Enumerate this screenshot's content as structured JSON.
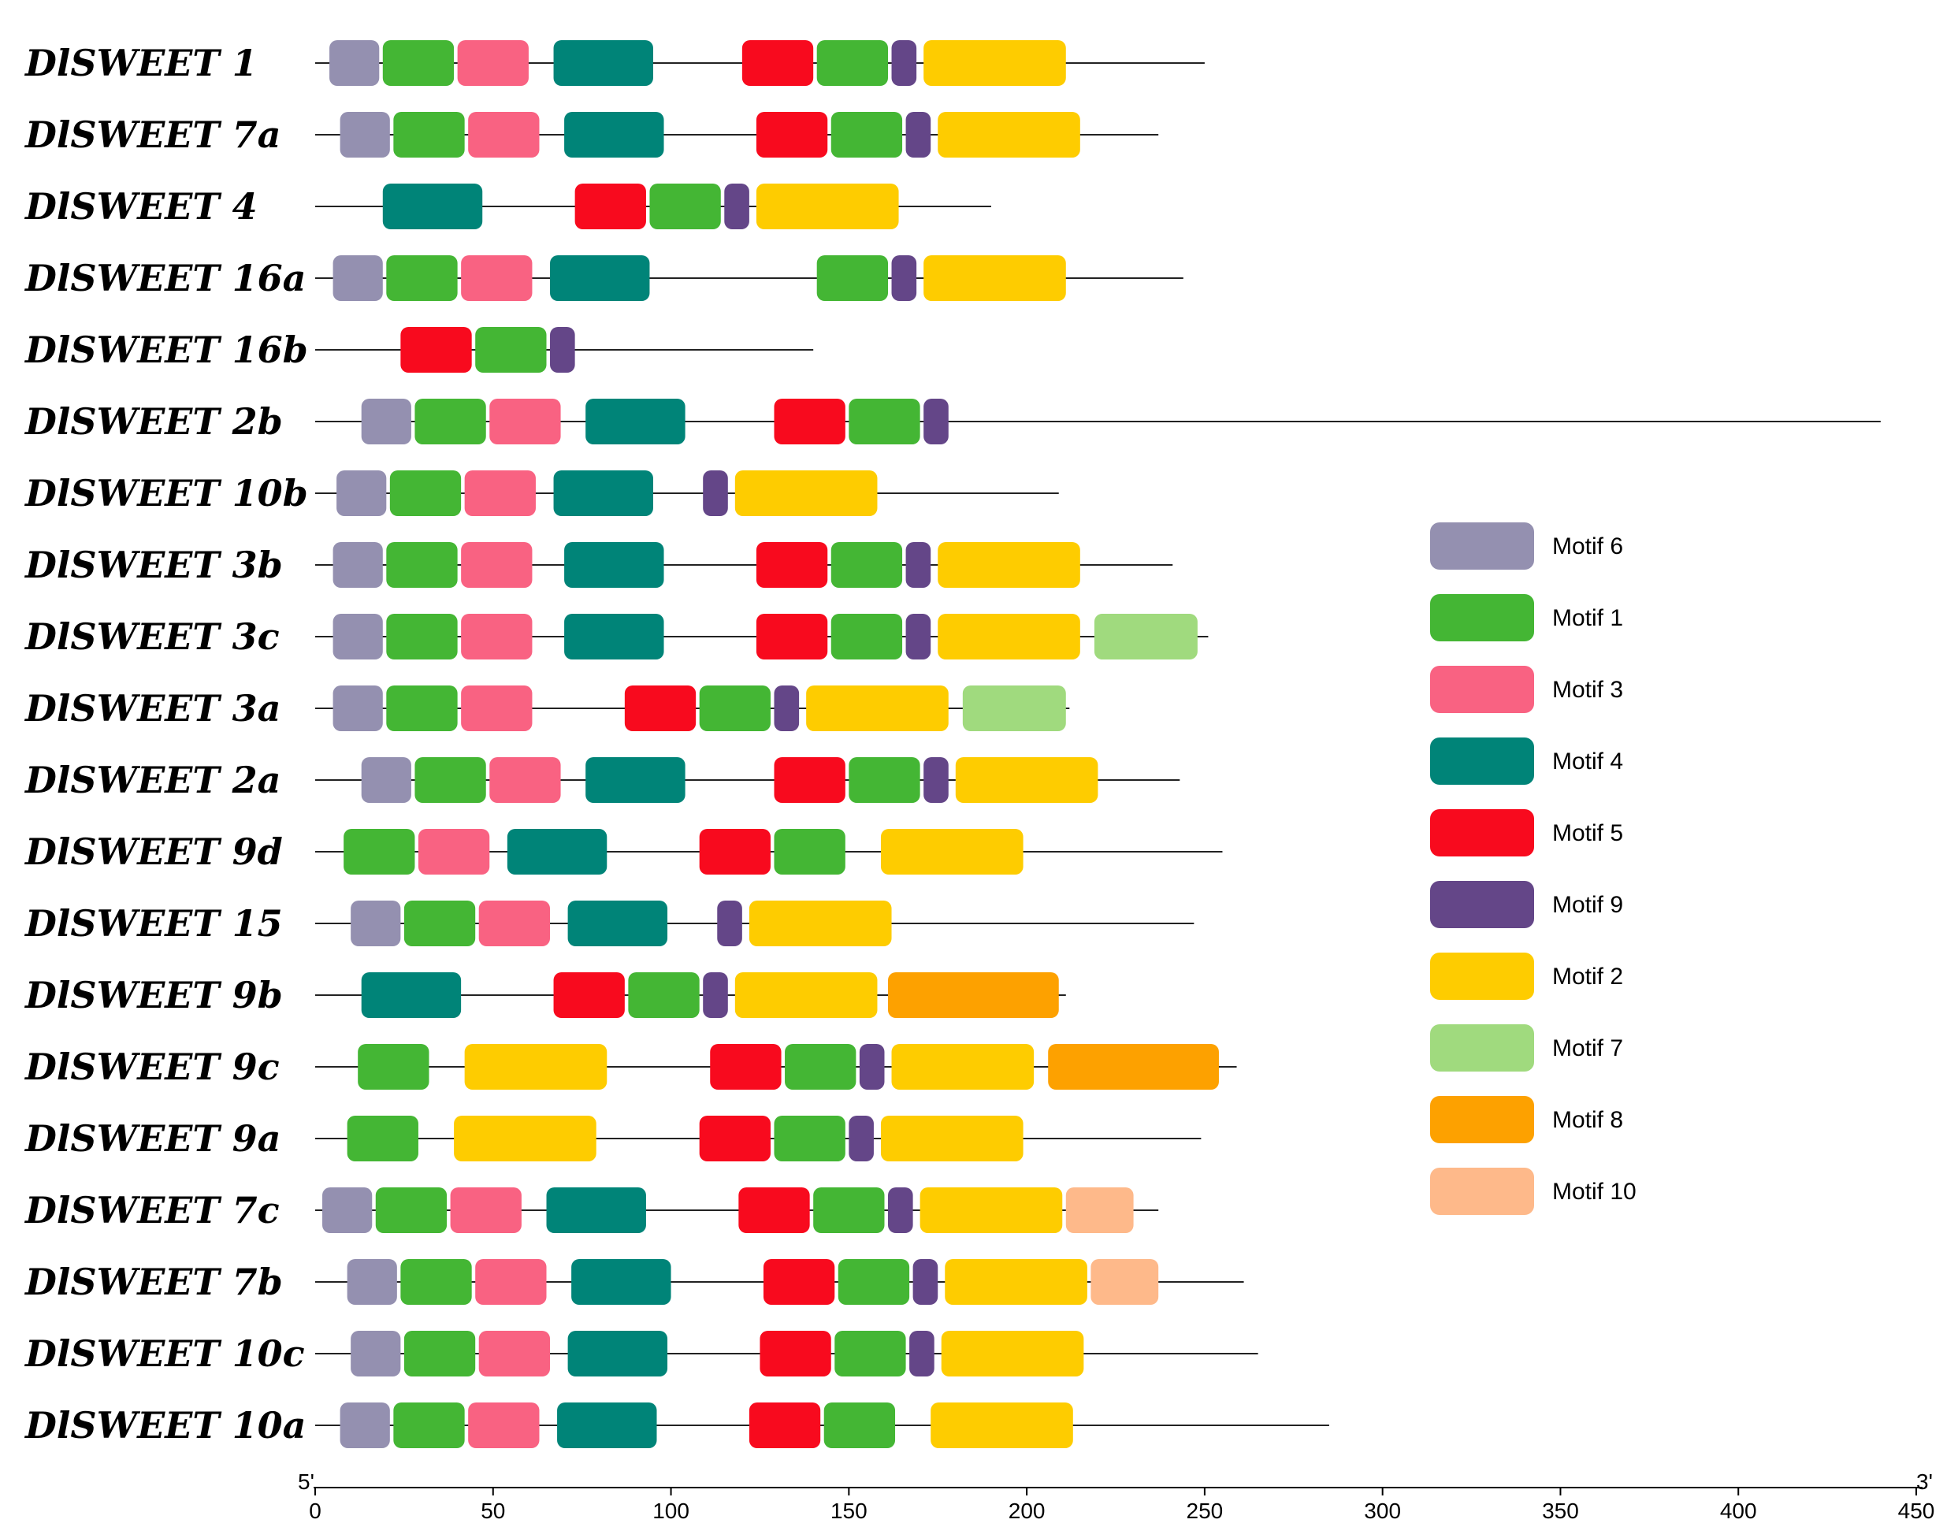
{
  "chart_data": {
    "type": "motif-diagram",
    "axis": {
      "start_label": "5'",
      "end_label": "3'",
      "min": 0,
      "max": 450,
      "ticks": [
        0,
        50,
        100,
        150,
        200,
        250,
        300,
        350,
        400,
        450
      ],
      "tick_labels": [
        "0",
        "50",
        "100",
        "150",
        "200",
        "250",
        "300",
        "350",
        "400",
        "450"
      ]
    },
    "motifs": [
      {
        "id": "m6",
        "name": "Motif 6",
        "color": "#9490B0"
      },
      {
        "id": "m1",
        "name": "Motif 1",
        "color": "#44B634"
      },
      {
        "id": "m3",
        "name": "Motif 3",
        "color": "#F96282"
      },
      {
        "id": "m4",
        "name": "Motif 4",
        "color": "#008478"
      },
      {
        "id": "m5",
        "name": "Motif 5",
        "color": "#F80A1E"
      },
      {
        "id": "m9",
        "name": "Motif 9",
        "color": "#644688"
      },
      {
        "id": "m2",
        "name": "Motif 2",
        "color": "#FECC00"
      },
      {
        "id": "m7",
        "name": "Motif 7",
        "color": "#A0DA7E"
      },
      {
        "id": "m8",
        "name": "Motif 8",
        "color": "#FDA100"
      },
      {
        "id": "m10",
        "name": "Motif 10",
        "color": "#FEB98A"
      }
    ],
    "genes": [
      {
        "name": "DlSWEET 1",
        "length": 250,
        "motifs": [
          [
            "m6",
            4,
            18
          ],
          [
            "m1",
            19,
            39
          ],
          [
            "m3",
            40,
            60
          ],
          [
            "m4",
            67,
            95
          ],
          [
            "m5",
            120,
            140
          ],
          [
            "m1",
            141,
            161
          ],
          [
            "m9",
            162,
            169
          ],
          [
            "m2",
            171,
            211
          ]
        ]
      },
      {
        "name": "DlSWEET 7a",
        "length": 237,
        "motifs": [
          [
            "m6",
            7,
            21
          ],
          [
            "m1",
            22,
            42
          ],
          [
            "m3",
            43,
            63
          ],
          [
            "m4",
            70,
            98
          ],
          [
            "m5",
            124,
            144
          ],
          [
            "m1",
            145,
            165
          ],
          [
            "m9",
            166,
            173
          ],
          [
            "m2",
            175,
            215
          ]
        ]
      },
      {
        "name": "DlSWEET 4",
        "length": 190,
        "motifs": [
          [
            "m4",
            19,
            47
          ],
          [
            "m5",
            73,
            93
          ],
          [
            "m1",
            94,
            114
          ],
          [
            "m9",
            115,
            122
          ],
          [
            "m2",
            124,
            164
          ]
        ]
      },
      {
        "name": "DlSWEET 16a",
        "length": 244,
        "motifs": [
          [
            "m6",
            5,
            19
          ],
          [
            "m1",
            20,
            40
          ],
          [
            "m3",
            41,
            61
          ],
          [
            "m4",
            66,
            94
          ],
          [
            "m1",
            141,
            161
          ],
          [
            "m9",
            162,
            169
          ],
          [
            "m2",
            171,
            211
          ]
        ]
      },
      {
        "name": "DlSWEET 16b",
        "length": 140,
        "motifs": [
          [
            "m5",
            24,
            44
          ],
          [
            "m1",
            45,
            65
          ],
          [
            "m9",
            66,
            73
          ]
        ]
      },
      {
        "name": "DlSWEET 2b",
        "length": 440,
        "motifs": [
          [
            "m6",
            13,
            27
          ],
          [
            "m1",
            28,
            48
          ],
          [
            "m3",
            49,
            69
          ],
          [
            "m4",
            76,
            104
          ],
          [
            "m5",
            129,
            149
          ],
          [
            "m1",
            150,
            170
          ],
          [
            "m9",
            171,
            178
          ]
        ]
      },
      {
        "name": "DlSWEET 10b",
        "length": 209,
        "motifs": [
          [
            "m6",
            6,
            20
          ],
          [
            "m1",
            21,
            41
          ],
          [
            "m3",
            42,
            62
          ],
          [
            "m4",
            67,
            95
          ],
          [
            "m9",
            109,
            116
          ],
          [
            "m2",
            118,
            158
          ]
        ]
      },
      {
        "name": "DlSWEET 3b",
        "length": 241,
        "motifs": [
          [
            "m6",
            5,
            19
          ],
          [
            "m1",
            20,
            40
          ],
          [
            "m3",
            41,
            61
          ],
          [
            "m4",
            70,
            98
          ],
          [
            "m5",
            124,
            144
          ],
          [
            "m1",
            145,
            165
          ],
          [
            "m9",
            166,
            173
          ],
          [
            "m2",
            175,
            215
          ]
        ]
      },
      {
        "name": "DlSWEET 3c",
        "length": 251,
        "motifs": [
          [
            "m6",
            5,
            19
          ],
          [
            "m1",
            20,
            40
          ],
          [
            "m3",
            41,
            61
          ],
          [
            "m4",
            70,
            98
          ],
          [
            "m5",
            124,
            144
          ],
          [
            "m1",
            145,
            165
          ],
          [
            "m9",
            166,
            173
          ],
          [
            "m2",
            175,
            215
          ],
          [
            "m7",
            219,
            248
          ]
        ]
      },
      {
        "name": "DlSWEET 3a",
        "length": 212,
        "motifs": [
          [
            "m6",
            5,
            19
          ],
          [
            "m1",
            20,
            40
          ],
          [
            "m3",
            41,
            61
          ],
          [
            "m5",
            87,
            107
          ],
          [
            "m1",
            108,
            128
          ],
          [
            "m9",
            129,
            136
          ],
          [
            "m2",
            138,
            178
          ],
          [
            "m7",
            182,
            211
          ]
        ]
      },
      {
        "name": "DlSWEET 2a",
        "length": 243,
        "motifs": [
          [
            "m6",
            13,
            27
          ],
          [
            "m1",
            28,
            48
          ],
          [
            "m3",
            49,
            69
          ],
          [
            "m4",
            76,
            104
          ],
          [
            "m5",
            129,
            149
          ],
          [
            "m1",
            150,
            170
          ],
          [
            "m9",
            171,
            178
          ],
          [
            "m2",
            180,
            220
          ]
        ]
      },
      {
        "name": "DlSWEET 9d",
        "length": 255,
        "motifs": [
          [
            "m1",
            8,
            28
          ],
          [
            "m3",
            29,
            49
          ],
          [
            "m4",
            54,
            82
          ],
          [
            "m5",
            108,
            128
          ],
          [
            "m1",
            129,
            149
          ],
          [
            "m2",
            159,
            199
          ]
        ]
      },
      {
        "name": "DlSWEET 15",
        "length": 247,
        "motifs": [
          [
            "m6",
            10,
            24
          ],
          [
            "m1",
            25,
            45
          ],
          [
            "m3",
            46,
            66
          ],
          [
            "m4",
            71,
            99
          ],
          [
            "m9",
            113,
            120
          ],
          [
            "m2",
            122,
            162
          ]
        ]
      },
      {
        "name": "DlSWEET 9b",
        "length": 211,
        "motifs": [
          [
            "m4",
            13,
            41
          ],
          [
            "m5",
            67,
            87
          ],
          [
            "m1",
            88,
            108
          ],
          [
            "m9",
            109,
            116
          ],
          [
            "m2",
            118,
            158
          ],
          [
            "m8",
            161,
            209
          ]
        ]
      },
      {
        "name": "DlSWEET 9c",
        "length": 259,
        "motifs": [
          [
            "m1",
            12,
            32
          ],
          [
            "m2",
            42,
            82
          ],
          [
            "m5",
            111,
            131
          ],
          [
            "m1",
            132,
            152
          ],
          [
            "m9",
            153,
            160
          ],
          [
            "m2",
            162,
            202
          ],
          [
            "m8",
            206,
            254
          ]
        ]
      },
      {
        "name": "DlSWEET 9a",
        "length": 249,
        "motifs": [
          [
            "m1",
            9,
            29
          ],
          [
            "m2",
            39,
            79
          ],
          [
            "m5",
            108,
            128
          ],
          [
            "m1",
            129,
            149
          ],
          [
            "m9",
            150,
            157
          ],
          [
            "m2",
            159,
            199
          ]
        ]
      },
      {
        "name": "DlSWEET 7c",
        "length": 237,
        "motifs": [
          [
            "m6",
            2,
            16
          ],
          [
            "m1",
            17,
            37
          ],
          [
            "m3",
            38,
            58
          ],
          [
            "m4",
            65,
            93
          ],
          [
            "m5",
            119,
            139
          ],
          [
            "m1",
            140,
            160
          ],
          [
            "m9",
            161,
            168
          ],
          [
            "m2",
            170,
            210
          ],
          [
            "m10",
            211,
            230
          ]
        ]
      },
      {
        "name": "DlSWEET 7b",
        "length": 261,
        "motifs": [
          [
            "m6",
            9,
            23
          ],
          [
            "m1",
            24,
            44
          ],
          [
            "m3",
            45,
            65
          ],
          [
            "m4",
            72,
            100
          ],
          [
            "m5",
            126,
            146
          ],
          [
            "m1",
            147,
            167
          ],
          [
            "m9",
            168,
            175
          ],
          [
            "m2",
            177,
            217
          ],
          [
            "m10",
            218,
            237
          ]
        ]
      },
      {
        "name": "DlSWEET 10c",
        "length": 265,
        "motifs": [
          [
            "m6",
            10,
            24
          ],
          [
            "m1",
            25,
            45
          ],
          [
            "m3",
            46,
            66
          ],
          [
            "m4",
            71,
            99
          ],
          [
            "m5",
            125,
            145
          ],
          [
            "m1",
            146,
            166
          ],
          [
            "m9",
            167,
            174
          ],
          [
            "m2",
            176,
            216
          ]
        ]
      },
      {
        "name": "DlSWEET 10a",
        "length": 285,
        "motifs": [
          [
            "m6",
            7,
            21
          ],
          [
            "m1",
            22,
            42
          ],
          [
            "m3",
            43,
            63
          ],
          [
            "m4",
            68,
            96
          ],
          [
            "m5",
            122,
            142
          ],
          [
            "m1",
            143,
            163
          ],
          [
            "m2",
            173,
            213
          ]
        ]
      }
    ]
  }
}
